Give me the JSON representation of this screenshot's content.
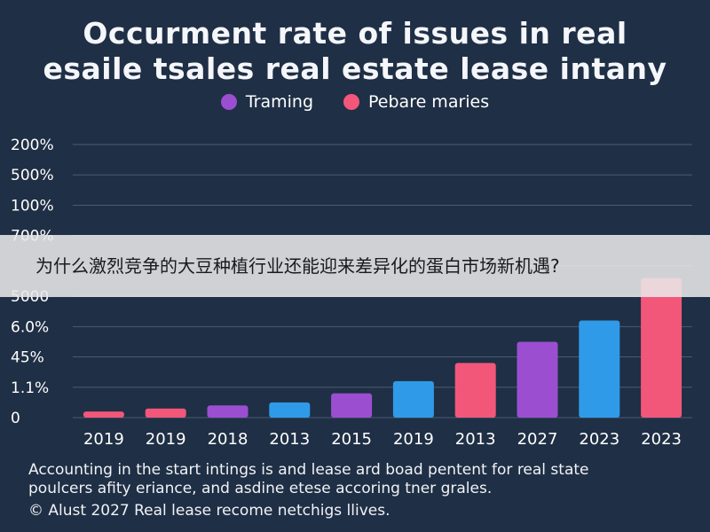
{
  "title_line1": "Occurment rate of issues in real",
  "title_line2": "esaile tsales real estate lease intany",
  "legend": [
    {
      "label": "Traming",
      "color": "#9b4fd0"
    },
    {
      "label": "Pebare maries",
      "color": "#f2577a"
    }
  ],
  "bar_colors": {
    "pink": "#f2577a",
    "purple": "#9b4fd0",
    "blue": "#2f9be8"
  },
  "chart_data": {
    "type": "bar",
    "categories": [
      "2019",
      "2019",
      "2018",
      "2013",
      "2015",
      "2019",
      "2013",
      "2027",
      "2023",
      "2023"
    ],
    "values": [
      0.2,
      0.3,
      0.4,
      0.5,
      0.8,
      1.2,
      1.8,
      2.5,
      3.2,
      4.6
    ],
    "bar_color_keys": [
      "pink",
      "pink",
      "purple",
      "blue",
      "purple",
      "blue",
      "pink",
      "purple",
      "blue",
      "pink"
    ],
    "y_tick_labels": [
      "0",
      "1.1%",
      "45%",
      "6.0%",
      "5000",
      "",
      "700%",
      "100%",
      "500%",
      "200%"
    ],
    "ylim": [
      0,
      9
    ],
    "grid": true
  },
  "note_line1": "Accounting in the start intings is and lease ard boad pentent for real state",
  "note_line2": "poulcers afity eriance, and asdine etese accoring tner grales.",
  "footer": "© Alust 2027 Real lease recome netchigs llives.",
  "banner_text": "为什么激烈竞争的大豆种植行业还能迎来差异化的蛋白市场新机遇?"
}
